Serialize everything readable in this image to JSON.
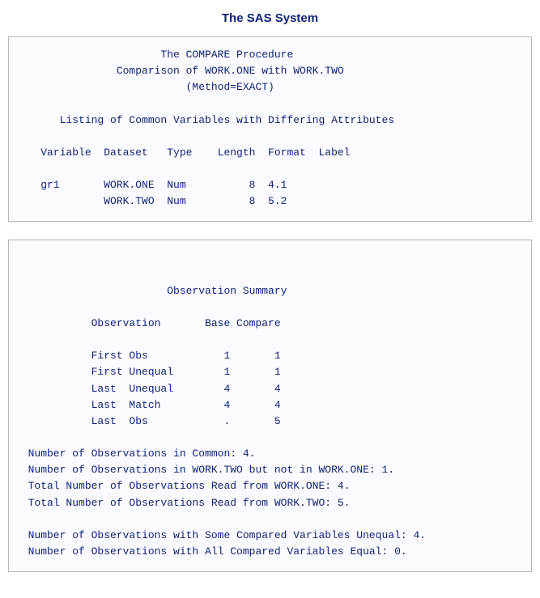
{
  "page": {
    "title": "The SAS System",
    "background_color": "#ffffff",
    "title_color": "#112277",
    "title_font_family": "Arial, Helvetica, sans-serif",
    "title_font_size_pt": 15,
    "title_font_weight": "bold"
  },
  "panel_style": {
    "border_color": "#b0b7bb",
    "background_color": "#fafbfe",
    "text_color": "#112277",
    "font_family": "Courier New, monospace",
    "font_size_pt": 13,
    "line_height": 1.55
  },
  "panel1": {
    "header": {
      "proc_line": "The COMPARE Procedure",
      "comparison_line": "Comparison of WORK.ONE with WORK.TWO",
      "method_line": "(Method=EXACT)"
    },
    "section_title": "Listing of Common Variables with Differing Attributes",
    "columns": [
      "Variable",
      "Dataset",
      "Type",
      "Length",
      "Format",
      "Label"
    ],
    "rows": [
      {
        "variable": "gr1",
        "dataset": "WORK.ONE",
        "type": "Num",
        "length": "8",
        "format": "4.1",
        "label": ""
      },
      {
        "variable": "",
        "dataset": "WORK.TWO",
        "type": "Num",
        "length": "8",
        "format": "5.2",
        "label": ""
      }
    ],
    "col_widths": {
      "variable": 10,
      "dataset": 10,
      "type": 6,
      "length": 8,
      "format": 8,
      "label": 5
    }
  },
  "panel2": {
    "section_title": "Observation Summary",
    "columns": [
      "Observation",
      "Base",
      "Compare"
    ],
    "rows": [
      {
        "observation": "First Obs",
        "base": "1",
        "compare": "1"
      },
      {
        "observation": "First Unequal",
        "base": "1",
        "compare": "1"
      },
      {
        "observation": "Last  Unequal",
        "base": "4",
        "compare": "4"
      },
      {
        "observation": "Last  Match",
        "base": "4",
        "compare": "4"
      },
      {
        "observation": "Last  Obs",
        "base": ".",
        "compare": "5"
      }
    ],
    "col_widths": {
      "observation": 16,
      "base": 6,
      "compare": 8
    },
    "notes_block1": [
      "Number of Observations in Common: 4.",
      "Number of Observations in WORK.TWO but not in WORK.ONE: 1.",
      "Total Number of Observations Read from WORK.ONE: 4.",
      "Total Number of Observations Read from WORK.TWO: 5."
    ],
    "notes_block2": [
      "Number of Observations with Some Compared Variables Unequal: 4.",
      "Number of Observations with All Compared Variables Equal: 0."
    ]
  }
}
